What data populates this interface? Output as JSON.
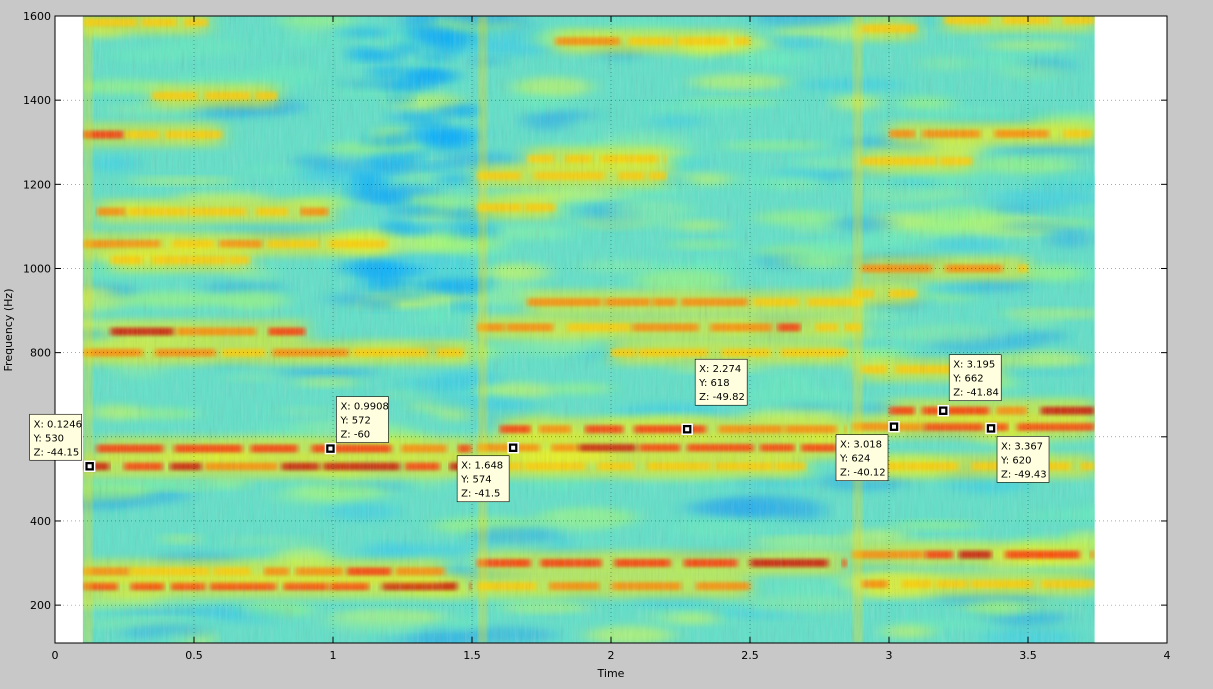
{
  "chart_data": {
    "type": "heatmap",
    "title": "",
    "xlabel": "Time",
    "ylabel": "Frequency (Hz)",
    "xlim": [
      0,
      4
    ],
    "ylim": [
      110,
      1600
    ],
    "x_ticks": [
      0,
      0.5,
      1,
      1.5,
      2,
      2.5,
      3,
      3.5,
      4
    ],
    "x_tick_labels": [
      "0",
      "0.5",
      "1",
      "1.5",
      "2",
      "2.5",
      "3",
      "3.5",
      "4"
    ],
    "y_ticks": [
      200,
      400,
      600,
      800,
      1000,
      1200,
      1400,
      1600
    ],
    "y_tick_labels": [
      "200",
      "400",
      "600",
      "800",
      "1000",
      "1200",
      "1400",
      "1600"
    ],
    "data_extent_x": [
      0.1,
      3.74
    ],
    "grid": true,
    "colormap": "jet",
    "data_cursors": [
      {
        "x": 0.1246,
        "y": 530,
        "z": -44.15,
        "lx": "X: 0.1246",
        "ly": "Y: 530",
        "lz": "Z: -44.15"
      },
      {
        "x": 0.9908,
        "y": 572,
        "z": -60,
        "lx": "X: 0.9908",
        "ly": "Y: 572",
        "lz": "Z: -60"
      },
      {
        "x": 1.648,
        "y": 574,
        "z": -41.5,
        "lx": "X: 1.648",
        "ly": "Y: 574",
        "lz": "Z: -41.5"
      },
      {
        "x": 2.274,
        "y": 618,
        "z": -49.82,
        "lx": "X: 2.274",
        "ly": "Y: 618",
        "lz": "Z: -49.82"
      },
      {
        "x": 3.018,
        "y": 624,
        "z": -40.12,
        "lx": "X: 3.018",
        "ly": "Y: 624",
        "lz": "Z: -40.12"
      },
      {
        "x": 3.195,
        "y": 662,
        "z": -41.84,
        "lx": "X: 3.195",
        "ly": "Y: 662",
        "lz": "Z: -41.84"
      },
      {
        "x": 3.367,
        "y": 620,
        "z": -49.43,
        "lx": "X: 3.367",
        "ly": "Y: 620",
        "lz": "Z: -49.43"
      }
    ],
    "colors": {
      "background": "#c8c8c8",
      "axes_background": "#ffffff",
      "tooltip_background": "#ffffe0",
      "low": "#00aaff",
      "mid": "#ffff00",
      "high": "#aa0000"
    }
  }
}
